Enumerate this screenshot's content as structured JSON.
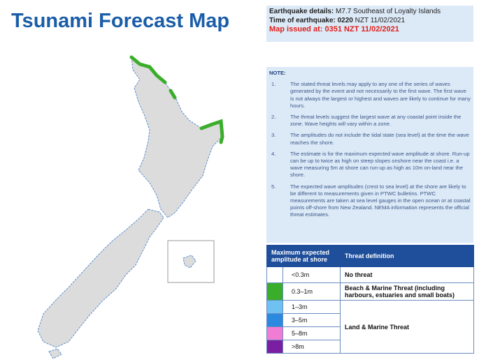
{
  "title": "Tsunami Forecast Map",
  "details": {
    "earthquake_label": "Earthquake details:",
    "earthquake": "M7.7 Southeast of Loyalty Islands",
    "time_label": "Time of earthquake:",
    "time_bold": "0220",
    "time": "NZT 11/02/2021",
    "issued": "Map issued at: 0351 NZT 11/02/2021"
  },
  "note": {
    "heading": "NOTE:",
    "items": [
      {
        "number": "1.",
        "text": "The stated threat levels may apply to any one of the series of waves generated by the event and not necessarily to the first wave. The first wave is not always the largest or highest and waves are likely to continue for many hours."
      },
      {
        "number": "2.",
        "text": "The threat levels suggest the largest wave at any coastal point inside the zone. Wave heights will vary within a zone."
      },
      {
        "number": "3.",
        "text": "The amplitudes do not include the tidal state (sea level) at the time the wave reaches the shore."
      },
      {
        "number": "4.",
        "text": "The estimate is for the maximum expected wave amplitude at shore. Run-up can be up to twice as high on steep slopes onshore near the coast i.e. a wave measuring 5m at shore can run-up as high as 10m on-land near the shore."
      },
      {
        "number": "5.",
        "text": "The expected wave amplitudes (crest to sea level) at the shore are likely to be different to measurements given in PTWC bulletins. PTWC measurements are taken at sea level gauges in the open ocean or at coastal points off-shore from New Zealand. NEMA information represents the official threat estimates."
      }
    ]
  },
  "legend": {
    "headers": [
      "Maximum expected amplitude at shore",
      "Threat definition"
    ],
    "rows": [
      {
        "amplitude": "<0.3m",
        "color": "#ffffff",
        "definition": "No threat"
      },
      {
        "amplitude": "0.3–1m",
        "color": "#3aae2a",
        "definition": "Beach & Marine Threat (including harbours, estuaries and small boats)"
      },
      {
        "amplitude": "1–3m",
        "color": "#6ec1f0",
        "definition": "Land & Marine Threat"
      },
      {
        "amplitude": "3–5m",
        "color": "#2b8ae0"
      },
      {
        "amplitude": "5–8m",
        "color": "#f07cd4"
      },
      {
        "amplitude": ">8m",
        "color": "#7a1fa2"
      }
    ]
  }
}
